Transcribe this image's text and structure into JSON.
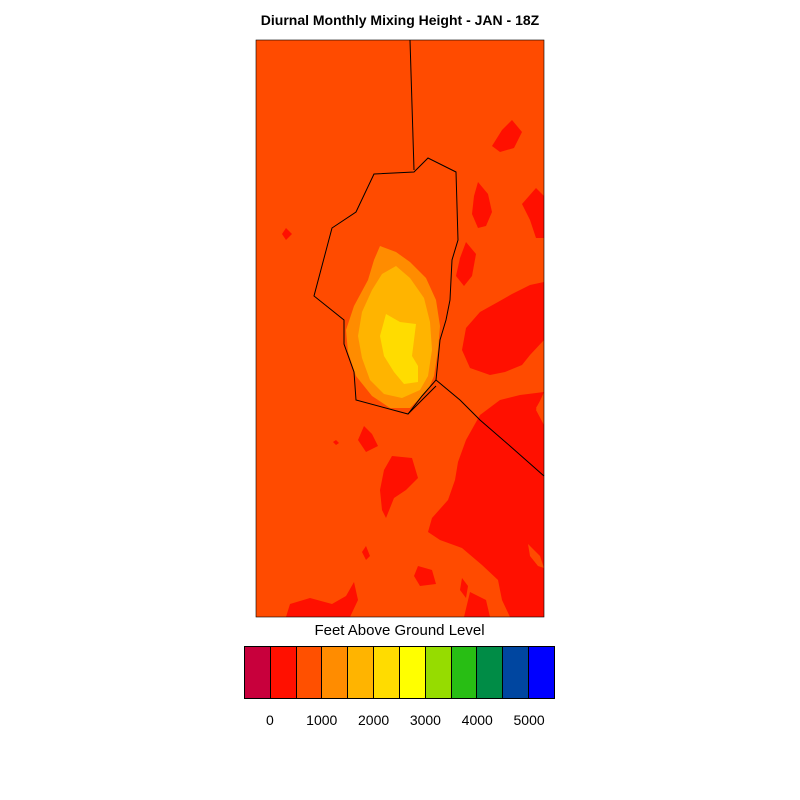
{
  "title": "Diurnal Monthly Mixing Height - JAN - 18Z",
  "legend": {
    "title": "Feet Above Ground Level",
    "ticks": [
      "0",
      "1000",
      "2000",
      "3000",
      "4000",
      "5000"
    ],
    "colors": [
      "#c8003c",
      "#ff1000",
      "#ff5000",
      "#ff8c00",
      "#ffb400",
      "#ffdc00",
      "#ffff00",
      "#96dc00",
      "#28be14",
      "#008c46",
      "#0046a0",
      "#0000ff"
    ]
  },
  "map": {
    "background_color": "#ff4b00",
    "colors": {
      "red": "#ff1000",
      "orange_light": "#ff8c00",
      "amber": "#ffb400",
      "gold": "#ffdc00",
      "boundary": "#000000"
    }
  }
}
